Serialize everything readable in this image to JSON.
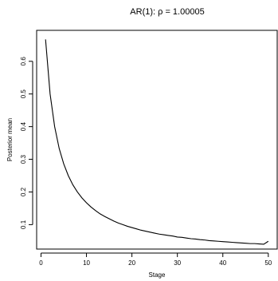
{
  "chart_data": {
    "type": "line",
    "title": "AR(1): ρ = 1.00005",
    "xlabel": "Stage",
    "ylabel": "Posterior mean",
    "xlim": [
      1,
      50
    ],
    "ylim": [
      0.05,
      0.67
    ],
    "x_ticks": [
      0,
      10,
      20,
      30,
      40,
      50
    ],
    "x_tick_labels": [
      "0",
      "10",
      "20",
      "30",
      "40",
      "50"
    ],
    "y_ticks": [
      0.1,
      0.2,
      0.3,
      0.4,
      0.5,
      0.6
    ],
    "y_tick_labels": [
      "0.1",
      "0.2",
      "0.3",
      "0.4",
      "0.5",
      "0.6"
    ],
    "grid": false,
    "legend": "none",
    "line_color": "#000000",
    "series": [
      {
        "x": [
          1,
          2,
          3,
          4,
          5,
          6,
          7,
          8,
          9,
          10,
          11,
          12,
          13,
          14,
          15,
          16,
          17,
          18,
          19,
          20,
          21,
          22,
          23,
          24,
          25,
          26,
          27,
          28,
          29,
          30,
          31,
          32,
          33,
          34,
          35,
          36,
          37,
          38,
          39,
          40,
          41,
          42,
          43,
          44,
          45,
          46,
          47,
          48,
          49,
          50
        ],
        "values": [
          0.667,
          0.5,
          0.4,
          0.333,
          0.286,
          0.25,
          0.222,
          0.2,
          0.182,
          0.167,
          0.154,
          0.143,
          0.133,
          0.125,
          0.118,
          0.111,
          0.105,
          0.1,
          0.095,
          0.091,
          0.087,
          0.083,
          0.08,
          0.077,
          0.074,
          0.071,
          0.069,
          0.067,
          0.065,
          0.062,
          0.061,
          0.059,
          0.057,
          0.056,
          0.054,
          0.053,
          0.051,
          0.05,
          0.049,
          0.048,
          0.047,
          0.046,
          0.045,
          0.044,
          0.043,
          0.042,
          0.042,
          0.041,
          0.04,
          0.049
        ]
      }
    ]
  }
}
